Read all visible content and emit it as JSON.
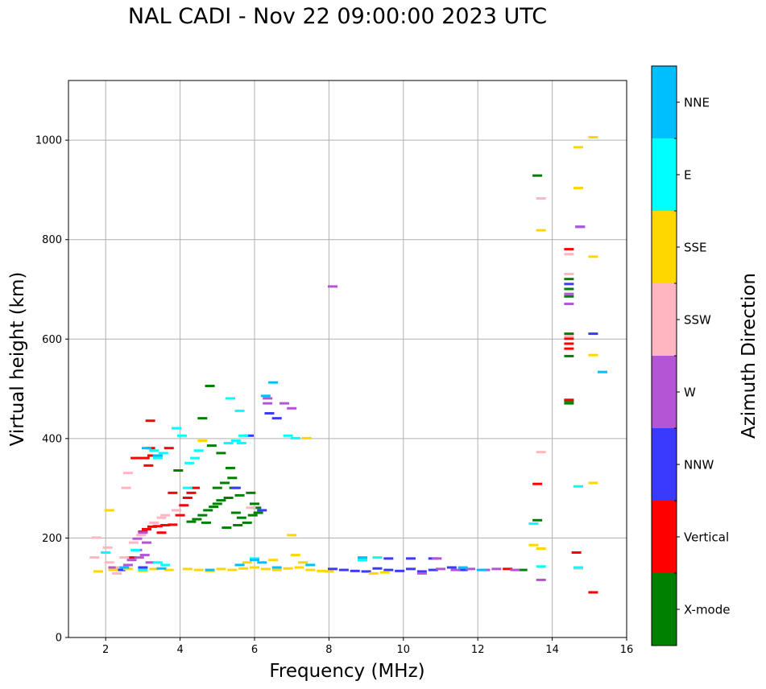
{
  "chart_data": {
    "type": "scatter",
    "title": "NAL CADI - Nov 22 09:00:00 2023 UTC",
    "xlabel": "Frequency (MHz)",
    "ylabel": "Virtual height (km)",
    "xlim": [
      1,
      16
    ],
    "ylim": [
      0,
      1120
    ],
    "xticks": [
      2,
      4,
      6,
      8,
      10,
      12,
      14,
      16
    ],
    "yticks": [
      0,
      200,
      400,
      600,
      800,
      1000
    ],
    "grid": true,
    "colorbar": {
      "title": "Azimuth Direction",
      "categories": [
        {
          "name": "X-mode",
          "color": "#008000"
        },
        {
          "name": "Vertical",
          "color": "#ff0000"
        },
        {
          "name": "NNW",
          "color": "#3a3aff"
        },
        {
          "name": "W",
          "color": "#b455d6"
        },
        {
          "name": "SSW",
          "color": "#ffb6c1"
        },
        {
          "name": "SSE",
          "color": "#ffd700"
        },
        {
          "name": "E",
          "color": "#00ffff"
        },
        {
          "name": "NNE",
          "color": "#00bfff"
        }
      ]
    },
    "series": [
      {
        "name": "X-mode",
        "points": [
          [
            4.3,
            232
          ],
          [
            4.45,
            237
          ],
          [
            4.6,
            245
          ],
          [
            4.75,
            255
          ],
          [
            4.9,
            262
          ],
          [
            5.0,
            268
          ],
          [
            5.1,
            275
          ],
          [
            5.35,
            340
          ],
          [
            5.4,
            320
          ],
          [
            5.2,
            310
          ],
          [
            5.0,
            300
          ],
          [
            5.45,
            300
          ],
          [
            5.6,
            285
          ],
          [
            5.5,
            250
          ],
          [
            5.65,
            240
          ],
          [
            5.8,
            230
          ],
          [
            5.95,
            245
          ],
          [
            6.05,
            260
          ],
          [
            6.0,
            268
          ],
          [
            4.85,
            385
          ],
          [
            5.1,
            370
          ],
          [
            4.6,
            440
          ],
          [
            4.8,
            505
          ],
          [
            3.95,
            335
          ],
          [
            5.9,
            290
          ],
          [
            5.25,
            220
          ],
          [
            13.6,
            235
          ],
          [
            13.6,
            928
          ],
          [
            14.45,
            720
          ],
          [
            14.45,
            700
          ],
          [
            14.45,
            685
          ],
          [
            14.45,
            610
          ],
          [
            14.45,
            565
          ],
          [
            14.45,
            475
          ],
          [
            14.45,
            470
          ],
          [
            13.2,
            135
          ],
          [
            6.1,
            250
          ],
          [
            5.3,
            280
          ],
          [
            4.7,
            230
          ],
          [
            5.55,
            225
          ]
        ]
      },
      {
        "name": "Vertical",
        "points": [
          [
            3.0,
            212
          ],
          [
            3.1,
            217
          ],
          [
            3.25,
            222
          ],
          [
            3.4,
            223
          ],
          [
            3.6,
            225
          ],
          [
            3.8,
            226
          ],
          [
            4.0,
            245
          ],
          [
            4.1,
            265
          ],
          [
            4.2,
            280
          ],
          [
            4.3,
            290
          ],
          [
            3.05,
            360
          ],
          [
            3.25,
            365
          ],
          [
            3.15,
            345
          ],
          [
            3.2,
            380
          ],
          [
            3.7,
            380
          ],
          [
            3.8,
            290
          ],
          [
            2.8,
            360
          ],
          [
            3.2,
            435
          ],
          [
            2.7,
            160
          ],
          [
            12.8,
            137
          ],
          [
            14.45,
            780
          ],
          [
            14.45,
            600
          ],
          [
            14.45,
            590
          ],
          [
            14.45,
            580
          ],
          [
            14.45,
            477
          ],
          [
            14.65,
            170
          ],
          [
            15.1,
            90
          ],
          [
            13.6,
            308
          ],
          [
            4.4,
            300
          ],
          [
            3.5,
            210
          ]
        ]
      },
      {
        "name": "NNW",
        "points": [
          [
            8.1,
            137
          ],
          [
            8.4,
            135
          ],
          [
            8.7,
            133
          ],
          [
            9.0,
            132
          ],
          [
            9.3,
            138
          ],
          [
            9.6,
            135
          ],
          [
            9.9,
            133
          ],
          [
            10.2,
            137
          ],
          [
            10.5,
            132
          ],
          [
            10.8,
            135
          ],
          [
            11.3,
            140
          ],
          [
            11.6,
            135
          ],
          [
            8.9,
            155
          ],
          [
            9.6,
            158
          ],
          [
            10.2,
            158
          ],
          [
            10.8,
            158
          ],
          [
            5.85,
            405
          ],
          [
            6.6,
            440
          ],
          [
            6.4,
            450
          ],
          [
            14.45,
            710
          ],
          [
            15.1,
            610
          ],
          [
            14.75,
            825
          ],
          [
            5.5,
            300
          ],
          [
            6.2,
            255
          ],
          [
            3.0,
            140
          ],
          [
            2.4,
            135
          ]
        ]
      },
      {
        "name": "W",
        "points": [
          [
            2.9,
            160
          ],
          [
            3.05,
            165
          ],
          [
            2.85,
            175
          ],
          [
            3.1,
            190
          ],
          [
            2.85,
            198
          ],
          [
            3.0,
            210
          ],
          [
            2.6,
            145
          ],
          [
            2.7,
            155
          ],
          [
            11.0,
            137
          ],
          [
            11.4,
            135
          ],
          [
            11.8,
            137
          ],
          [
            12.2,
            135
          ],
          [
            12.5,
            137
          ],
          [
            13.0,
            135
          ],
          [
            10.5,
            128
          ],
          [
            6.35,
            470
          ],
          [
            6.35,
            480
          ],
          [
            6.8,
            470
          ],
          [
            7.0,
            460
          ],
          [
            14.45,
            670
          ],
          [
            14.75,
            825
          ],
          [
            13.7,
            115
          ],
          [
            8.1,
            705
          ],
          [
            3.2,
            150
          ],
          [
            2.2,
            140
          ],
          [
            10.9,
            158
          ],
          [
            14.45,
            690
          ]
        ]
      },
      {
        "name": "SSW",
        "points": [
          [
            1.7,
            160
          ],
          [
            1.75,
            200
          ],
          [
            2.4,
            140
          ],
          [
            2.5,
            160
          ],
          [
            2.55,
            300
          ],
          [
            2.6,
            330
          ],
          [
            2.75,
            190
          ],
          [
            2.95,
            205
          ],
          [
            3.3,
            230
          ],
          [
            3.5,
            240
          ],
          [
            3.6,
            245
          ],
          [
            2.1,
            150
          ],
          [
            2.3,
            128
          ],
          [
            13.7,
            372
          ],
          [
            13.7,
            882
          ],
          [
            14.45,
            730
          ],
          [
            14.45,
            605
          ],
          [
            14.45,
            770
          ],
          [
            14.7,
            138
          ],
          [
            2.05,
            180
          ],
          [
            5.9,
            260
          ],
          [
            3.9,
            255
          ]
        ]
      },
      {
        "name": "SSE",
        "points": [
          [
            4.2,
            137
          ],
          [
            4.5,
            135
          ],
          [
            4.8,
            133
          ],
          [
            5.1,
            137
          ],
          [
            5.4,
            135
          ],
          [
            5.7,
            138
          ],
          [
            6.0,
            140
          ],
          [
            6.3,
            137
          ],
          [
            6.6,
            135
          ],
          [
            6.9,
            138
          ],
          [
            7.2,
            140
          ],
          [
            7.5,
            135
          ],
          [
            7.8,
            133
          ],
          [
            8.0,
            132
          ],
          [
            9.2,
            128
          ],
          [
            9.5,
            130
          ],
          [
            1.8,
            132
          ],
          [
            2.2,
            135
          ],
          [
            2.6,
            137
          ],
          [
            3.0,
            133
          ],
          [
            3.3,
            137
          ],
          [
            3.7,
            135
          ],
          [
            7.1,
            165
          ],
          [
            7.4,
            400
          ],
          [
            7.0,
            205
          ],
          [
            2.1,
            255
          ],
          [
            13.5,
            185
          ],
          [
            13.7,
            178
          ],
          [
            13.7,
            818
          ],
          [
            14.7,
            985
          ],
          [
            14.7,
            903
          ],
          [
            15.1,
            1005
          ],
          [
            15.1,
            765
          ],
          [
            15.1,
            567
          ],
          [
            15.1,
            310
          ],
          [
            6.5,
            155
          ],
          [
            5.8,
            150
          ],
          [
            7.3,
            150
          ],
          [
            4.6,
            395
          ]
        ]
      },
      {
        "name": "E",
        "points": [
          [
            3.4,
            360
          ],
          [
            3.55,
            370
          ],
          [
            3.3,
            375
          ],
          [
            3.9,
            420
          ],
          [
            4.05,
            405
          ],
          [
            4.25,
            350
          ],
          [
            4.4,
            360
          ],
          [
            4.5,
            375
          ],
          [
            5.3,
            390
          ],
          [
            5.5,
            395
          ],
          [
            5.7,
            405
          ],
          [
            5.65,
            390
          ],
          [
            5.35,
            480
          ],
          [
            6.9,
            405
          ],
          [
            7.1,
            400
          ],
          [
            3.0,
            135
          ],
          [
            3.6,
            145
          ],
          [
            5.6,
            455
          ],
          [
            8.9,
            155
          ],
          [
            9.3,
            160
          ],
          [
            13.5,
            228
          ],
          [
            13.7,
            142
          ],
          [
            14.7,
            303
          ],
          [
            14.7,
            140
          ],
          [
            2.0,
            170
          ],
          [
            2.8,
            175
          ],
          [
            3.4,
            150
          ],
          [
            6.0,
            158
          ],
          [
            4.2,
            300
          ]
        ]
      },
      {
        "name": "NNE",
        "points": [
          [
            6.5,
            512
          ],
          [
            6.3,
            485
          ],
          [
            6.0,
            155
          ],
          [
            5.6,
            145
          ],
          [
            4.8,
            135
          ],
          [
            3.5,
            138
          ],
          [
            8.9,
            160
          ],
          [
            15.35,
            533
          ],
          [
            2.5,
            140
          ],
          [
            3.1,
            380
          ],
          [
            3.4,
            365
          ],
          [
            6.2,
            150
          ],
          [
            6.6,
            140
          ],
          [
            7.5,
            145
          ],
          [
            11.6,
            140
          ],
          [
            12.1,
            135
          ]
        ]
      }
    ]
  }
}
